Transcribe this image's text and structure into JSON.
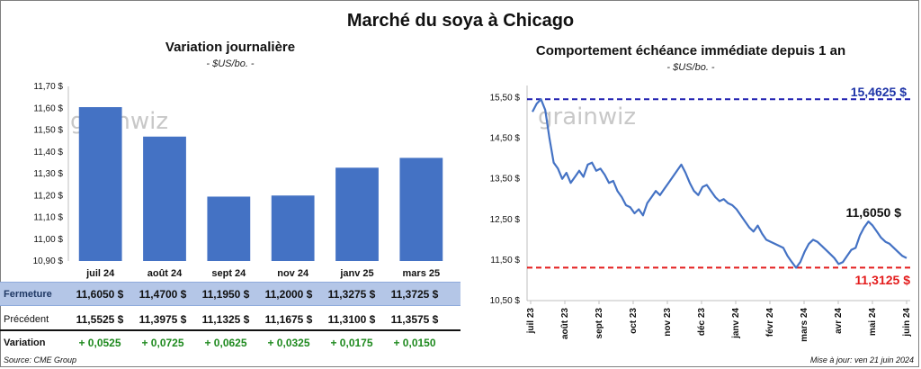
{
  "title": "Marché du soya à Chicago",
  "source": "Source: CME Group",
  "updated": "Mise à jour: ven 21 juin 2024",
  "watermark": "grainwiz",
  "chart_data": [
    {
      "type": "bar",
      "title": "Variation journalière",
      "unit": "- $US/bo. -",
      "categories": [
        "juil 24",
        "août 24",
        "sept 24",
        "nov 24",
        "janv 25",
        "mars 25"
      ],
      "values": [
        11.605,
        11.47,
        11.195,
        11.2,
        11.3275,
        11.3725
      ],
      "ylim": [
        10.9,
        11.7
      ],
      "yticks": [
        10.9,
        11.0,
        11.1,
        11.2,
        11.3,
        11.4,
        11.5,
        11.6,
        11.7
      ],
      "ytick_labels": [
        "10,90 $",
        "11,00 $",
        "11,10 $",
        "11,20 $",
        "11,30 $",
        "11,40 $",
        "11,50 $",
        "11,60 $",
        "11,70 $"
      ],
      "bar_color": "#4472c4",
      "table": {
        "fermeture_label": "Fermeture",
        "fermeture": [
          "11,6050  $",
          "11,4700  $",
          "11,1950  $",
          "11,2000  $",
          "11,3275  $",
          "11,3725  $"
        ],
        "precedent_label": "Précédent",
        "precedent": [
          "11,5525  $",
          "11,3975  $",
          "11,1325  $",
          "11,1675  $",
          "11,3100  $",
          "11,3575  $"
        ],
        "variation_label": "Variation",
        "variation": [
          "+ 0,0525",
          "+ 0,0725",
          "+ 0,0625",
          "+ 0,0325",
          "+ 0,0175",
          "+ 0,0150"
        ]
      }
    },
    {
      "type": "line",
      "title": "Comportement  échéance immédiate depuis 1 an",
      "unit": "- $US/bo. -",
      "ylim": [
        10.5,
        15.8
      ],
      "yticks": [
        10.5,
        11.5,
        12.5,
        13.5,
        14.5,
        15.5
      ],
      "ytick_labels": [
        "10,50 $",
        "11,50 $",
        "12,50 $",
        "13,50 $",
        "14,50 $",
        "15,50 $"
      ],
      "xtick_labels": [
        "juil 23",
        "août 23",
        "sept 23",
        "oct 23",
        "nov 23",
        "déc 23",
        "janv 24",
        "févr 24",
        "mars 24",
        "avr 24",
        "mai 24",
        "juin 24"
      ],
      "line_color": "#4472c4",
      "high": 15.4625,
      "high_label": "15,4625 $",
      "high_color": "#1f1fb0",
      "low": 11.3125,
      "low_label": "11,3125 $",
      "low_color": "#e31c1c",
      "current": 11.605,
      "current_label": "11,6050 $",
      "series": [
        {
          "values": [
            15.15,
            15.35,
            15.46,
            15.2,
            14.5,
            13.9,
            13.75,
            13.5,
            13.65,
            13.4,
            13.55,
            13.7,
            13.55,
            13.85,
            13.9,
            13.7,
            13.75,
            13.6,
            13.4,
            13.45,
            13.2,
            13.05,
            12.85,
            12.8,
            12.65,
            12.75,
            12.6,
            12.9,
            13.05,
            13.2,
            13.1,
            13.25,
            13.4,
            13.55,
            13.7,
            13.85,
            13.65,
            13.4,
            13.2,
            13.1,
            13.3,
            13.35,
            13.2,
            13.05,
            12.95,
            13.0,
            12.9,
            12.85,
            12.75,
            12.6,
            12.45,
            12.3,
            12.2,
            12.35,
            12.15,
            12.0,
            11.95,
            11.9,
            11.85,
            11.8,
            11.6,
            11.45,
            11.31,
            11.45,
            11.7,
            11.9,
            12.0,
            11.95,
            11.85,
            11.75,
            11.65,
            11.55,
            11.4,
            11.45,
            11.6,
            11.75,
            11.8,
            12.1,
            12.3,
            12.45,
            12.35,
            12.2,
            12.05,
            11.95,
            11.9,
            11.8,
            11.7,
            11.6,
            11.55
          ]
        }
      ]
    }
  ]
}
